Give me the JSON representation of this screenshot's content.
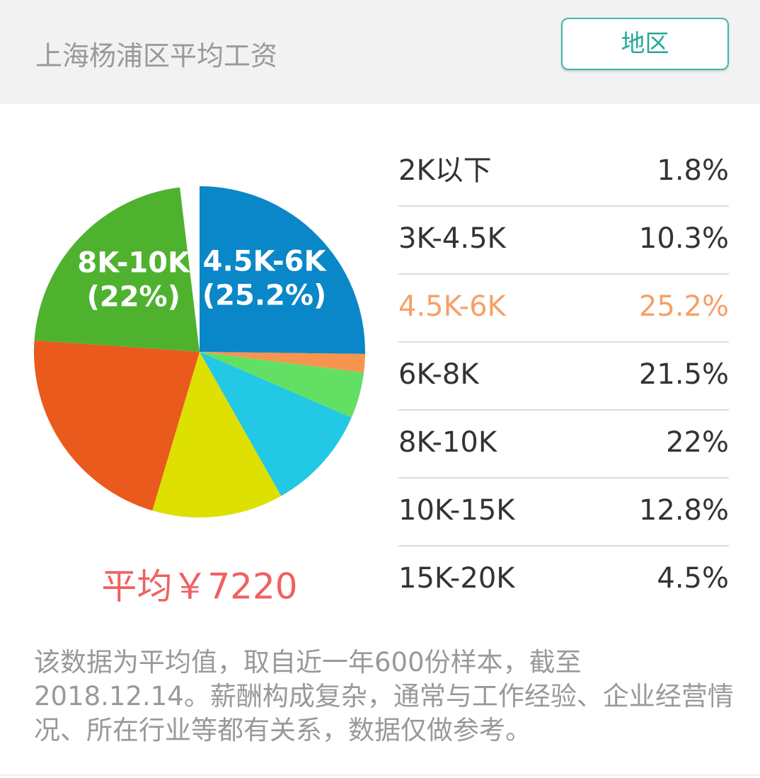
{
  "header": {
    "title": "上海杨浦区平均工资",
    "button": "地区"
  },
  "chart_data": {
    "type": "pie",
    "categories": [
      "2K以下",
      "3K-4.5K",
      "4.5K-6K",
      "6K-8K",
      "8K-10K",
      "10K-15K",
      "15K-20K"
    ],
    "values": [
      1.8,
      10.3,
      25.2,
      21.5,
      22,
      12.8,
      4.5
    ],
    "value_labels": [
      "1.8%",
      "10.3%",
      "25.2%",
      "21.5%",
      "22%",
      "12.8%",
      "4.5%"
    ],
    "pie_value_labels": [
      null,
      null,
      "(25.2%)",
      null,
      "(22%)",
      null,
      null
    ],
    "colors": [
      "#f79450",
      "#22c8e4",
      "#0a87c8",
      "#ea5a1c",
      "#4fb22f",
      "#dde000",
      "#63e063"
    ],
    "highlight": 2,
    "highlight_color": "#f5a068",
    "average": "平均￥7220"
  },
  "note": "该数据为平均值，取自近一年600份样本，截至2018.12.14。薪酬构成复杂，通常与工作经验、企业经营情况、所在行业等都有关系，数据仅做参考。"
}
